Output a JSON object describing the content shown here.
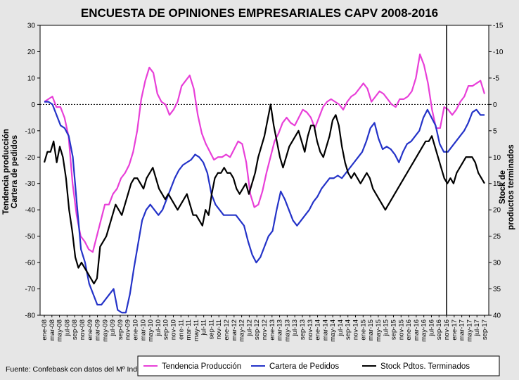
{
  "chart_data": {
    "type": "line",
    "title": "ENCUESTA DE OPINIONES EMPRESARIALES CAPV 2008-2016",
    "ylabel_left": [
      "Tendencia producción",
      "Cartera de pedidos"
    ],
    "ylabel_right": [
      "Stock de",
      "productos terminados"
    ],
    "source": "Fuente: Confebask con datos del Mº Industria",
    "left_axis": {
      "min": -80,
      "max": 30,
      "ticks": [
        30,
        20,
        10,
        0,
        -10,
        -20,
        -30,
        -40,
        -50,
        -60,
        -70,
        -80
      ],
      "grid": false
    },
    "right_axis": {
      "min": -15,
      "max": 40,
      "inverted": true,
      "ticks": [
        -15,
        -10,
        -5,
        0,
        5,
        10,
        15,
        20,
        25,
        30,
        35,
        40
      ]
    },
    "x_labels": [
      "ene-08",
      "mar-08",
      "may-08",
      "jul-08",
      "sep-08",
      "nov-08",
      "ene-09",
      "mar-09",
      "may-09",
      "jul-09",
      "sep-09",
      "nov-09",
      "ene-10",
      "mar-10",
      "may-10",
      "jul-10",
      "sep-10",
      "nov-10",
      "ene-11",
      "mar-11",
      "may-11",
      "jul-11",
      "sep-11",
      "nov-11",
      "ene-12",
      "mar-12",
      "may-12",
      "jul-12",
      "sep-12",
      "nov-12",
      "ene-13",
      "mar-13",
      "may-13",
      "jul-13",
      "sep-13",
      "nov-13",
      "ene-14",
      "mar-14",
      "may-14",
      "jul-14",
      "sep-14",
      "nov-14",
      "ene-15",
      "mar-15",
      "may-15",
      "jul-15",
      "sep-15",
      "nov-15",
      "ene-16",
      "mar-16",
      "may-16",
      "jul-16",
      "sep-16",
      "nov-16",
      "ene-17",
      "mar-17",
      "may-17",
      "jul-17",
      "sep-17"
    ],
    "vertical_marker": "nov-16",
    "zero_line": "dotted",
    "legend_position": "bottom",
    "series": [
      {
        "name": "Tendencia Producción",
        "color": "#e83fd8",
        "axis": "left",
        "values": [
          1,
          2,
          3,
          -1,
          -1,
          -5,
          -12,
          -30,
          -42,
          -50,
          -52,
          -55,
          -56,
          -50,
          -44,
          -38,
          -38,
          -34,
          -32,
          -28,
          -26,
          -23,
          -18,
          -10,
          2,
          9,
          14,
          12,
          4,
          1,
          0,
          -4,
          -2,
          1,
          7,
          9,
          11,
          6,
          -4,
          -11,
          -15,
          -18,
          -21,
          -20,
          -20,
          -19,
          -20,
          -17,
          -14,
          -15,
          -22,
          -34,
          -39,
          -38,
          -33,
          -26,
          -20,
          -14,
          -11,
          -7,
          -5,
          -7,
          -8,
          -5,
          -2,
          -3,
          -5,
          -9,
          -5,
          -1,
          1,
          2,
          1,
          0,
          -2,
          1,
          3,
          4,
          6,
          8,
          6,
          1,
          3,
          5,
          4,
          2,
          0,
          -1,
          2,
          2,
          3,
          5,
          10,
          19,
          15,
          8,
          -2,
          -9,
          -9,
          -1,
          -2,
          -4,
          -2,
          1,
          3,
          7,
          7,
          8,
          9,
          4
        ]
      },
      {
        "name": "Cartera de Pedidos",
        "color": "#2433c8",
        "axis": "left",
        "values": [
          1,
          1,
          0,
          -4,
          -8,
          -9,
          -12,
          -20,
          -38,
          -55,
          -60,
          -68,
          -72,
          -76,
          -76,
          -74,
          -72,
          -70,
          -78,
          -79,
          -79,
          -72,
          -62,
          -53,
          -44,
          -40,
          -38,
          -40,
          -42,
          -40,
          -36,
          -32,
          -28,
          -25,
          -23,
          -22,
          -21,
          -19,
          -20,
          -22,
          -26,
          -34,
          -38,
          -40,
          -42,
          -42,
          -42,
          -42,
          -44,
          -46,
          -52,
          -57,
          -60,
          -58,
          -54,
          -50,
          -48,
          -40,
          -33,
          -36,
          -40,
          -44,
          -46,
          -44,
          -42,
          -40,
          -37,
          -35,
          -32,
          -30,
          -28,
          -28,
          -27,
          -28,
          -26,
          -24,
          -22,
          -20,
          -18,
          -14,
          -9,
          -7,
          -13,
          -17,
          -16,
          -17,
          -19,
          -22,
          -18,
          -15,
          -14,
          -12,
          -10,
          -5,
          -2,
          -5,
          -8,
          -15,
          -18,
          -18,
          -16,
          -14,
          -12,
          -10,
          -7,
          -3,
          -2,
          -4,
          -4
        ]
      },
      {
        "name": "Stock Pdtos. Terminados",
        "color": "#000000",
        "axis": "right",
        "values": [
          11,
          9,
          9,
          7,
          11,
          8,
          10,
          14,
          20,
          24,
          29,
          31,
          30,
          31,
          32,
          33,
          34,
          33,
          27,
          26,
          25,
          23,
          21,
          19,
          20,
          21,
          19,
          17,
          15,
          14,
          14,
          15,
          16,
          14,
          13,
          12,
          14,
          16,
          17,
          18,
          17,
          18,
          19,
          20,
          19,
          18,
          17,
          19,
          21,
          21,
          22,
          23,
          20,
          21,
          17,
          14,
          13,
          13,
          12,
          13,
          13,
          14,
          16,
          17,
          16,
          15,
          17,
          15,
          13,
          10,
          8,
          6,
          3,
          0,
          4,
          7,
          10,
          12,
          10,
          8,
          7,
          6,
          5,
          7,
          9,
          6,
          4,
          4,
          7,
          9,
          10,
          8,
          6,
          3,
          2,
          4,
          8,
          11,
          13,
          14,
          13,
          14,
          15,
          14,
          13,
          14,
          16,
          17,
          18,
          19,
          20,
          19,
          18,
          17,
          16,
          15,
          14,
          13,
          12,
          11,
          10,
          9,
          8,
          7,
          7,
          6,
          8,
          10,
          12,
          14,
          15,
          14,
          15,
          13,
          12,
          11,
          10,
          10,
          10,
          11,
          13,
          14,
          15
        ]
      }
    ]
  }
}
